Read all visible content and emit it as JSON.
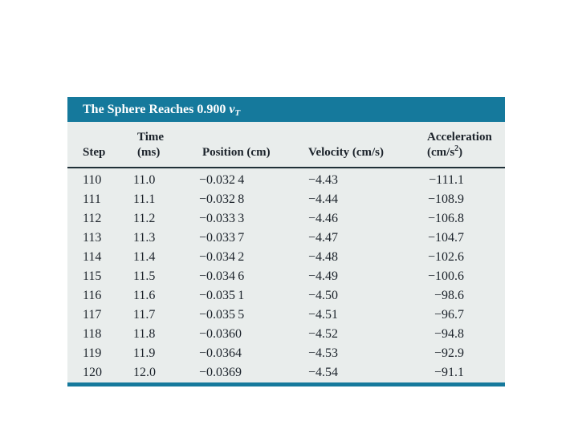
{
  "colors": {
    "accent_teal": "#15799c",
    "table_body_bg": "#e9edec",
    "header_rule": "#203038",
    "text": "#1c232b",
    "title_text": "#ffffff",
    "page_bg": "#ffffff"
  },
  "table": {
    "title": {
      "prefix": "The Sphere Reaches 0.900 ",
      "variable": "v",
      "subscript": "T"
    },
    "header": {
      "step": "Step",
      "time_line1": "Time",
      "time_line2": "(ms)",
      "position": "Position (cm)",
      "velocity": "Velocity (cm/s)",
      "acceleration_line1": "Acceleration",
      "acceleration_unit_prefix": "(cm/s",
      "acceleration_unit_sup": "2",
      "acceleration_unit_suffix": ")"
    },
    "rows": [
      {
        "step": "110",
        "time": "11.0",
        "position": "−0.032 4",
        "velocity": "−4.43",
        "acceleration": "−111.1"
      },
      {
        "step": "111",
        "time": "11.1",
        "position": "−0.032 8",
        "velocity": "−4.44",
        "acceleration": "−108.9"
      },
      {
        "step": "112",
        "time": "11.2",
        "position": "−0.033 3",
        "velocity": "−4.46",
        "acceleration": "−106.8"
      },
      {
        "step": "113",
        "time": "11.3",
        "position": "−0.033 7",
        "velocity": "−4.47",
        "acceleration": "−104.7"
      },
      {
        "step": "114",
        "time": "11.4",
        "position": "−0.034 2",
        "velocity": "−4.48",
        "acceleration": "−102.6"
      },
      {
        "step": "115",
        "time": "11.5",
        "position": "−0.034 6",
        "velocity": "−4.49",
        "acceleration": "−100.6"
      },
      {
        "step": "116",
        "time": "11.6",
        "position": "−0.035 1",
        "velocity": "−4.50",
        "acceleration": "−98.6"
      },
      {
        "step": "117",
        "time": "11.7",
        "position": "−0.035 5",
        "velocity": "−4.51",
        "acceleration": "−96.7"
      },
      {
        "step": "118",
        "time": "11.8",
        "position": "−0.0360",
        "velocity": "−4.52",
        "acceleration": "−94.8"
      },
      {
        "step": "119",
        "time": "11.9",
        "position": "−0.0364",
        "velocity": "−4.53",
        "acceleration": "−92.9"
      },
      {
        "step": "120",
        "time": "12.0",
        "position": "−0.0369",
        "velocity": "−4.54",
        "acceleration": "−91.1"
      }
    ]
  }
}
